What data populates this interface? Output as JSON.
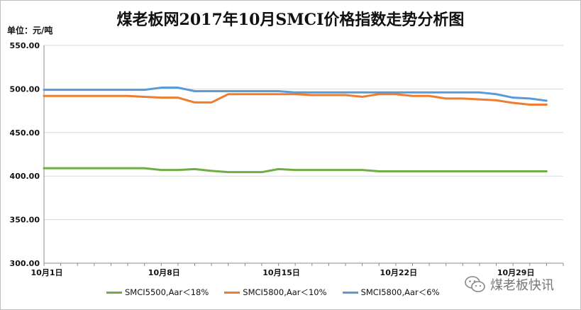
{
  "chart_data": {
    "type": "line",
    "title": "煤老板网2017年10月SMCI价格指数走势分析图",
    "ylabel": "单位：元/吨",
    "ylim": [
      300,
      550
    ],
    "yticks": [
      "550.00",
      "500.00",
      "450.00",
      "400.00",
      "350.00",
      "300.00"
    ],
    "xlim": [
      1,
      32
    ],
    "xticks": [
      {
        "day": 1,
        "label": "10月1日"
      },
      {
        "day": 8,
        "label": "10月8日"
      },
      {
        "day": 15,
        "label": "10月15日"
      },
      {
        "day": 22,
        "label": "10月22日"
      },
      {
        "day": 29,
        "label": "10月29日"
      }
    ],
    "x": [
      1,
      2,
      3,
      4,
      5,
      6,
      7,
      8,
      9,
      10,
      11,
      12,
      13,
      14,
      15,
      16,
      17,
      18,
      19,
      20,
      21,
      22,
      23,
      24,
      25,
      26,
      27,
      28,
      29,
      30,
      31
    ],
    "grid": true,
    "legend_position": "bottom",
    "series": [
      {
        "name": "SMCI5500,Aar＜18%",
        "color": "#70ad47",
        "values": [
          409,
          409,
          409,
          409,
          409,
          409,
          409,
          407,
          407,
          408,
          406,
          404.5,
          404.5,
          404.5,
          408,
          407,
          407,
          407,
          407,
          407,
          405.5,
          405.5,
          405.5,
          405.5,
          405.5,
          405.5,
          405.5,
          405.5,
          405.5,
          405.5,
          405.5
        ]
      },
      {
        "name": "SMCI5800,Aar＜10%",
        "color": "#ed7d31",
        "values": [
          492,
          492,
          492,
          492,
          492,
          492,
          491,
          490,
          490,
          484.5,
          484.5,
          494,
          494,
          494,
          494,
          494,
          493,
          493,
          493,
          491,
          494,
          494,
          492,
          492,
          489,
          489,
          488,
          487,
          484,
          482,
          482
        ]
      },
      {
        "name": "SMCI5800,Aar＜6%",
        "color": "#5b9bd5",
        "values": [
          499,
          499,
          499,
          499,
          499,
          499,
          499,
          501.5,
          501.5,
          497.5,
          497.5,
          497.5,
          497.5,
          497.5,
          497.5,
          496,
          496,
          496,
          496,
          496,
          496,
          496,
          496,
          496,
          496,
          496,
          496,
          494,
          490,
          489,
          486.5
        ]
      }
    ]
  },
  "watermark": {
    "text": "煤老板快讯",
    "icon": "wechat-icon"
  }
}
